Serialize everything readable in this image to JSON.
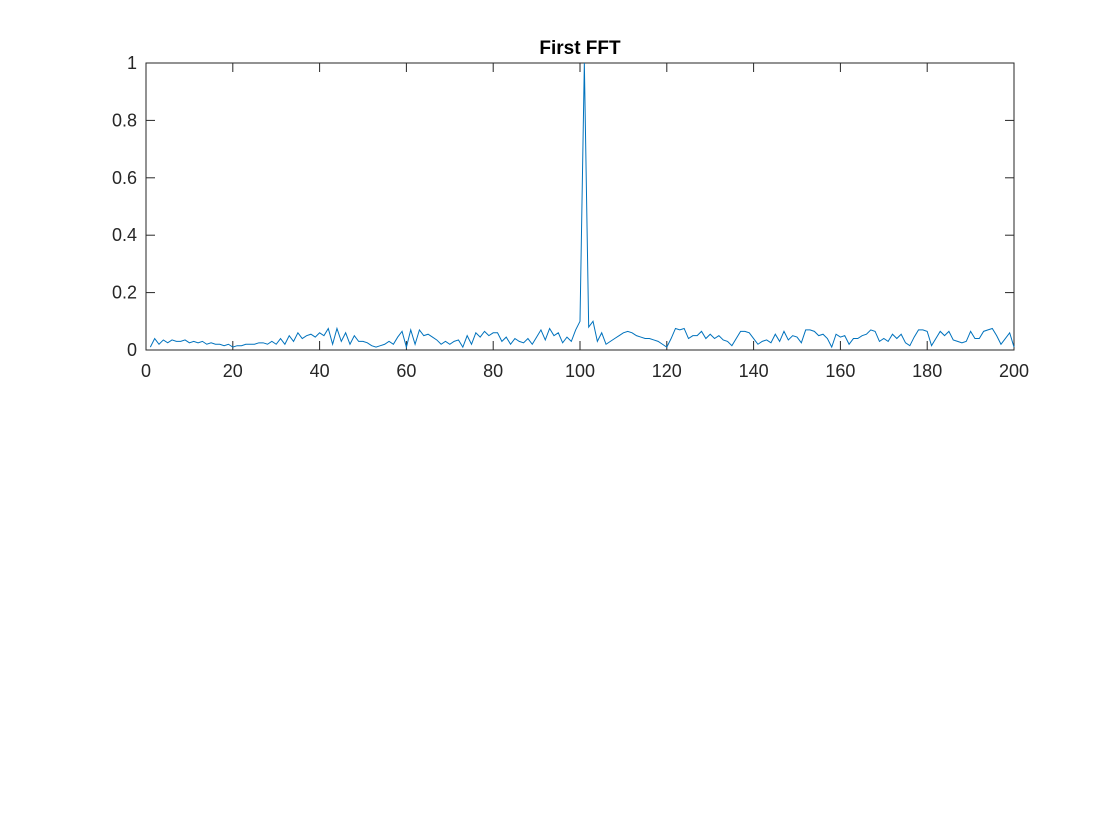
{
  "chart_data": {
    "type": "line",
    "title": "First FFT",
    "x": [
      1,
      2,
      3,
      4,
      5,
      6,
      7,
      8,
      9,
      10,
      11,
      12,
      13,
      14,
      15,
      16,
      17,
      18,
      19,
      20,
      21,
      22,
      23,
      24,
      25,
      26,
      27,
      28,
      29,
      30,
      31,
      32,
      33,
      34,
      35,
      36,
      37,
      38,
      39,
      40,
      41,
      42,
      43,
      44,
      45,
      46,
      47,
      48,
      49,
      50,
      51,
      52,
      53,
      54,
      55,
      56,
      57,
      58,
      59,
      60,
      61,
      62,
      63,
      64,
      65,
      66,
      67,
      68,
      69,
      70,
      71,
      72,
      73,
      74,
      75,
      76,
      77,
      78,
      79,
      80,
      81,
      82,
      83,
      84,
      85,
      86,
      87,
      88,
      89,
      90,
      91,
      92,
      93,
      94,
      95,
      96,
      97,
      98,
      99,
      100,
      101,
      102,
      103,
      104,
      105,
      106,
      107,
      108,
      109,
      110,
      111,
      112,
      113,
      114,
      115,
      116,
      117,
      118,
      119,
      120,
      121,
      122,
      123,
      124,
      125,
      126,
      127,
      128,
      129,
      130,
      131,
      132,
      133,
      134,
      135,
      136,
      137,
      138,
      139,
      140,
      141,
      142,
      143,
      144,
      145,
      146,
      147,
      148,
      149,
      150,
      151,
      152,
      153,
      154,
      155,
      156,
      157,
      158,
      159,
      160,
      161,
      162,
      163,
      164,
      165,
      166,
      167,
      168,
      169,
      170,
      171,
      172,
      173,
      174,
      175,
      176,
      177,
      178,
      179,
      180,
      181,
      182,
      183,
      184,
      185,
      186,
      187,
      188,
      189,
      190,
      191,
      192,
      193,
      194,
      195,
      196,
      197,
      198,
      199,
      200
    ],
    "series": [
      {
        "color": "#0072bd",
        "values": [
          0.01,
          0.04,
          0.02,
          0.035,
          0.025,
          0.035,
          0.03,
          0.03,
          0.035,
          0.025,
          0.03,
          0.025,
          0.03,
          0.02,
          0.025,
          0.02,
          0.02,
          0.015,
          0.02,
          0.01,
          0.015,
          0.015,
          0.02,
          0.02,
          0.02,
          0.025,
          0.025,
          0.02,
          0.03,
          0.02,
          0.04,
          0.02,
          0.05,
          0.03,
          0.06,
          0.04,
          0.05,
          0.055,
          0.045,
          0.06,
          0.05,
          0.075,
          0.02,
          0.075,
          0.03,
          0.06,
          0.02,
          0.05,
          0.03,
          0.03,
          0.025,
          0.015,
          0.01,
          0.015,
          0.02,
          0.03,
          0.02,
          0.045,
          0.065,
          0.01,
          0.07,
          0.02,
          0.07,
          0.05,
          0.055,
          0.045,
          0.035,
          0.02,
          0.03,
          0.02,
          0.03,
          0.035,
          0.01,
          0.05,
          0.02,
          0.06,
          0.045,
          0.065,
          0.05,
          0.06,
          0.06,
          0.03,
          0.045,
          0.02,
          0.04,
          0.03,
          0.025,
          0.04,
          0.02,
          0.045,
          0.07,
          0.035,
          0.075,
          0.05,
          0.06,
          0.025,
          0.045,
          0.03,
          0.07,
          0.1,
          1.0,
          0.08,
          0.1,
          0.03,
          0.06,
          0.02,
          0.03,
          0.04,
          0.05,
          0.06,
          0.065,
          0.06,
          0.05,
          0.045,
          0.04,
          0.04,
          0.035,
          0.03,
          0.02,
          0.01,
          0.04,
          0.075,
          0.07,
          0.075,
          0.04,
          0.05,
          0.05,
          0.065,
          0.04,
          0.055,
          0.04,
          0.05,
          0.035,
          0.03,
          0.015,
          0.04,
          0.065,
          0.065,
          0.06,
          0.04,
          0.02,
          0.03,
          0.035,
          0.025,
          0.055,
          0.03,
          0.065,
          0.035,
          0.05,
          0.045,
          0.025,
          0.07,
          0.07,
          0.065,
          0.05,
          0.055,
          0.04,
          0.01,
          0.055,
          0.045,
          0.05,
          0.02,
          0.04,
          0.04,
          0.05,
          0.055,
          0.07,
          0.065,
          0.03,
          0.04,
          0.03,
          0.055,
          0.04,
          0.055,
          0.025,
          0.015,
          0.045,
          0.07,
          0.07,
          0.065,
          0.015,
          0.04,
          0.065,
          0.05,
          0.065,
          0.035,
          0.03,
          0.025,
          0.03,
          0.065,
          0.04,
          0.04,
          0.065,
          0.07,
          0.075,
          0.05,
          0.02,
          0.04,
          0.06,
          0.01
        ]
      }
    ],
    "xlim": [
      0,
      200
    ],
    "xticks": [
      0,
      20,
      40,
      60,
      80,
      100,
      120,
      140,
      160,
      180,
      200
    ],
    "ylim": [
      0,
      1
    ],
    "yticks": [
      0,
      0.2,
      0.4,
      0.6,
      0.8,
      1
    ]
  }
}
